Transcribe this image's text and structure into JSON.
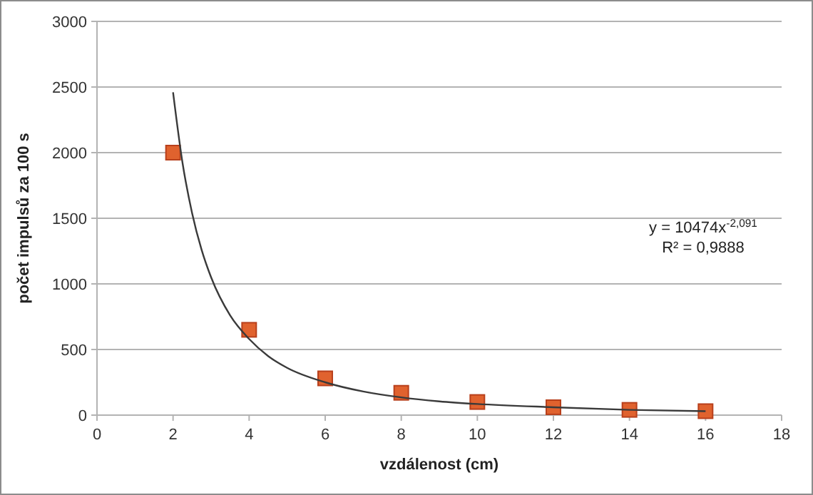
{
  "chart_data": {
    "type": "scatter",
    "xlabel": "vzdálenost (cm)",
    "ylabel": "počet impulsů za 100 s",
    "xlim": [
      0,
      18
    ],
    "xticks": [
      0,
      2,
      4,
      6,
      8,
      10,
      12,
      14,
      16,
      18
    ],
    "ylim": [
      0,
      3000
    ],
    "yticks": [
      0,
      500,
      1000,
      1500,
      2000,
      2500,
      3000
    ],
    "grid": "y",
    "marker": "square",
    "annotations": [
      "y = 10474x$^{-2,091}$",
      "R² = 0,9888"
    ],
    "series": [
      {
        "color": "#e0622e",
        "x": [
          2,
          4,
          6,
          8,
          10,
          12,
          14,
          16
        ],
        "values": [
          2000,
          650,
          280,
          170,
          100,
          60,
          40,
          30
        ]
      },
      {
        "type": "line",
        "color": "#3a3a3a",
        "marker": "none",
        "line_style": "solid",
        "x": [
          2,
          2.25,
          2.5,
          2.75,
          3,
          3.5,
          4,
          4.5,
          5,
          6,
          7,
          8,
          9,
          10,
          12,
          14,
          16
        ],
        "values": [
          2460,
          1920,
          1540,
          1260,
          1050,
          760,
          580,
          450,
          360,
          250,
          180,
          135,
          105,
          85,
          60,
          40,
          30
        ]
      }
    ]
  }
}
